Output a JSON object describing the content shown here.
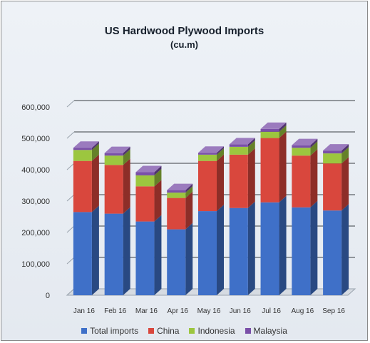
{
  "colors": {
    "Total imports": "#3f70c8",
    "China": "#d9473d",
    "Indonesia": "#9cc63f",
    "Malaysia": "#7a4fa8"
  },
  "chart_data": {
    "type": "bar",
    "stacked": true,
    "three_d": true,
    "title": "US Hardwood Plywood Imports",
    "subtitle": "(cu.m)",
    "categories": [
      "Jan 16",
      "Feb 16",
      "Mar 16",
      "Apr 16",
      "May 16",
      "Jun 16",
      "Jul 16",
      "Aug 16",
      "Sep 16"
    ],
    "series": [
      {
        "name": "Total imports",
        "values": [
          265000,
          260000,
          235000,
          210000,
          268000,
          278000,
          296000,
          280000,
          270000
        ]
      },
      {
        "name": "China",
        "values": [
          163000,
          155000,
          112000,
          100000,
          160000,
          170000,
          205000,
          165000,
          150000
        ]
      },
      {
        "name": "Indonesia",
        "values": [
          35000,
          30000,
          35000,
          17000,
          20000,
          25000,
          20000,
          25000,
          32000
        ]
      },
      {
        "name": "Malaysia",
        "values": [
          7000,
          8000,
          10000,
          8000,
          6000,
          8000,
          9000,
          8000,
          9000
        ]
      }
    ],
    "y_ticks": [
      "0",
      "100,000",
      "200,000",
      "300,000",
      "400,000",
      "500,000",
      "600,000"
    ],
    "ylim": [
      0,
      600000
    ],
    "grid": true,
    "legend_position": "bottom"
  }
}
